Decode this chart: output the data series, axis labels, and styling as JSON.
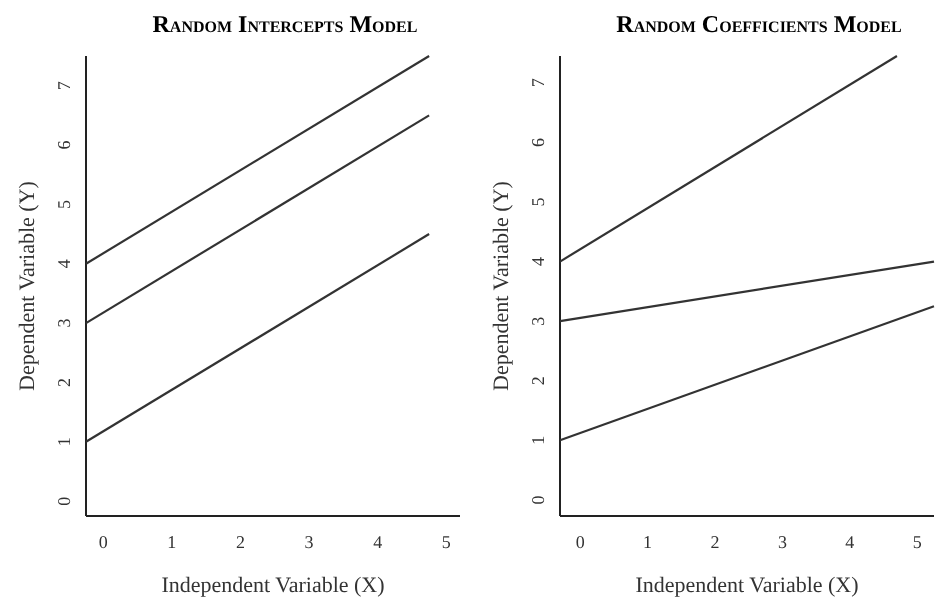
{
  "chart_data": [
    {
      "type": "line",
      "title": "Random Intercepts Model",
      "xlabel": "Independent Variable (X)",
      "ylabel": "Dependent Variable (Y)",
      "xlim": [
        -0.25,
        5.2
      ],
      "ylim": [
        -0.25,
        7.5
      ],
      "xticks": [
        0,
        1,
        2,
        3,
        4,
        5
      ],
      "yticks": [
        0,
        1,
        2,
        3,
        4,
        5,
        6,
        7
      ],
      "grid": false,
      "marker": "none",
      "line_style": "solid",
      "series": [
        {
          "color": "#333333",
          "x": [
            -0.25,
            4.75
          ],
          "values": [
            4.0,
            7.5
          ]
        },
        {
          "color": "#333333",
          "x": [
            -0.25,
            4.75
          ],
          "values": [
            3.0,
            6.5
          ]
        },
        {
          "color": "#333333",
          "x": [
            -0.25,
            4.75
          ],
          "values": [
            1.0,
            4.5
          ]
        }
      ]
    },
    {
      "type": "line",
      "title": "Random Coefficients Model",
      "xlabel": "Independent Variable (X)",
      "ylabel": "Dependent Variable (Y)",
      "xlim": [
        -0.3,
        5.25
      ],
      "ylim": [
        -0.27,
        7.45
      ],
      "xticks": [
        0,
        1,
        2,
        3,
        4,
        5
      ],
      "yticks": [
        0,
        1,
        2,
        3,
        4,
        5,
        6,
        7
      ],
      "grid": false,
      "marker": "none",
      "line_style": "solid",
      "series": [
        {
          "color": "#333333",
          "x": [
            -0.3,
            4.7
          ],
          "values": [
            4.0,
            7.45
          ]
        },
        {
          "color": "#333333",
          "x": [
            -0.3,
            5.25
          ],
          "values": [
            3.0,
            4.0
          ]
        },
        {
          "color": "#333333",
          "x": [
            -0.3,
            5.25
          ],
          "values": [
            1.0,
            3.25
          ]
        }
      ]
    }
  ]
}
